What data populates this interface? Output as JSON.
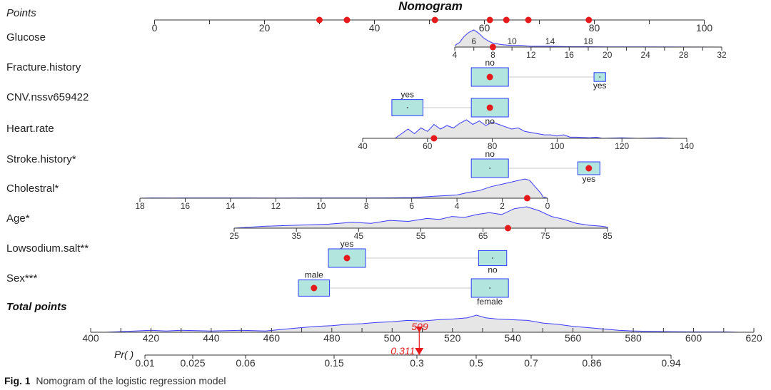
{
  "chart_data": {
    "type": "nomogram",
    "title": "Nomogram",
    "points_label": "Points",
    "points_axis": {
      "range": [
        0,
        100
      ],
      "ticks": [
        0,
        20,
        40,
        60,
        80,
        100
      ],
      "ticklabels": [
        "0",
        "20",
        "40",
        "60",
        "80",
        "100"
      ]
    },
    "points_markers": [
      30,
      35,
      51,
      61,
      64,
      68,
      79
    ],
    "variables": [
      {
        "name": "Glucose",
        "kind": "continuous",
        "ticks": [
          4,
          8,
          12,
          16,
          20,
          24,
          28,
          32
        ],
        "ticklabels": [
          "4",
          "8",
          "12",
          "16",
          "20",
          "24",
          "28",
          "32"
        ],
        "minor_ticks": [
          4,
          6,
          8,
          10,
          12,
          14,
          16,
          18,
          20,
          22,
          24,
          26,
          28,
          30,
          32
        ],
        "minor_labels": [
          {
            "v": 6,
            "t": "6"
          },
          {
            "v": 10,
            "t": "10"
          },
          {
            "v": 14,
            "t": "14"
          },
          {
            "v": 18,
            "t": "18"
          }
        ],
        "observed": 8,
        "density": [
          [
            4,
            2
          ],
          [
            4.5,
            6
          ],
          [
            5,
            14
          ],
          [
            5.5,
            19
          ],
          [
            6,
            22
          ],
          [
            6.5,
            18
          ],
          [
            7,
            12
          ],
          [
            7.5,
            8
          ],
          [
            8,
            5
          ],
          [
            9,
            3
          ],
          [
            10,
            2
          ],
          [
            11,
            2
          ],
          [
            12,
            1
          ],
          [
            14,
            1
          ],
          [
            16,
            0.5
          ],
          [
            18,
            0.5
          ],
          [
            20,
            0.3
          ],
          [
            24,
            0.2
          ],
          [
            28,
            0.1
          ],
          [
            32,
            0
          ]
        ]
      },
      {
        "name": "Fracture.history",
        "kind": "categorical",
        "levels": [
          {
            "label": "no",
            "value": 0,
            "box": 20,
            "label_pos": "above",
            "observed": true
          },
          {
            "label": "yes",
            "value": 1,
            "box": 3,
            "label_pos": "below",
            "observed": false
          }
        ]
      },
      {
        "name": "CNV.nssv659422",
        "kind": "categorical",
        "levels": [
          {
            "label": "yes",
            "value": 1,
            "box": 16,
            "label_pos": "above",
            "observed": false
          },
          {
            "label": "no",
            "value": 0,
            "box": 20,
            "label_pos": "below",
            "observed": true
          }
        ]
      },
      {
        "name": "Heart.rate",
        "kind": "continuous",
        "ticks": [
          40,
          60,
          80,
          100,
          120,
          140
        ],
        "ticklabels": [
          "40",
          "60",
          "80",
          "100",
          "120",
          "140"
        ],
        "observed": 62,
        "density": [
          [
            50,
            0
          ],
          [
            52,
            4
          ],
          [
            54,
            8
          ],
          [
            56,
            4
          ],
          [
            58,
            9
          ],
          [
            60,
            6
          ],
          [
            62,
            12
          ],
          [
            64,
            8
          ],
          [
            66,
            11
          ],
          [
            68,
            9
          ],
          [
            70,
            13
          ],
          [
            72,
            16
          ],
          [
            74,
            12
          ],
          [
            76,
            15
          ],
          [
            78,
            11
          ],
          [
            80,
            14
          ],
          [
            82,
            12
          ],
          [
            84,
            10
          ],
          [
            86,
            8
          ],
          [
            88,
            9
          ],
          [
            90,
            6
          ],
          [
            92,
            5
          ],
          [
            94,
            4
          ],
          [
            96,
            3
          ],
          [
            98,
            3
          ],
          [
            100,
            2
          ],
          [
            102,
            3
          ],
          [
            104,
            1
          ],
          [
            106,
            1
          ],
          [
            110,
            0.5
          ],
          [
            112,
            1
          ],
          [
            114,
            0
          ],
          [
            120,
            0.5
          ],
          [
            125,
            0
          ],
          [
            132,
            0.5
          ],
          [
            136,
            0
          ]
        ]
      },
      {
        "name": "Stroke.history*",
        "kind": "categorical",
        "levels": [
          {
            "label": "no",
            "value": 0,
            "box": 20,
            "label_pos": "above",
            "observed": false
          },
          {
            "label": "yes",
            "value": 1,
            "box": 10,
            "label_pos": "below",
            "observed": true
          }
        ]
      },
      {
        "name": "Cholestral*",
        "kind": "continuous",
        "ticks": [
          18,
          16,
          14,
          12,
          10,
          8,
          6,
          4,
          2,
          0
        ],
        "ticklabels": [
          "18",
          "16",
          "14",
          "12",
          "10",
          "8",
          "6",
          "4",
          "2",
          "0"
        ],
        "observed": 0.9,
        "density": [
          [
            18,
            0
          ],
          [
            17.5,
            0.5
          ],
          [
            16.5,
            0.3
          ],
          [
            15,
            0.4
          ],
          [
            13.5,
            0.4
          ],
          [
            12,
            0.3
          ],
          [
            10.5,
            0.5
          ],
          [
            9,
            0.4
          ],
          [
            8,
            0.5
          ],
          [
            7,
            0.6
          ],
          [
            6,
            1
          ],
          [
            5.5,
            2
          ],
          [
            5,
            3
          ],
          [
            4.5,
            4
          ],
          [
            4,
            5
          ],
          [
            3.5,
            9
          ],
          [
            3,
            12
          ],
          [
            2.5,
            18
          ],
          [
            2,
            22
          ],
          [
            1.5,
            26
          ],
          [
            1,
            30
          ],
          [
            0.8,
            28
          ],
          [
            0.5,
            16
          ],
          [
            0.3,
            8
          ],
          [
            0.2,
            2
          ],
          [
            0,
            0
          ]
        ]
      },
      {
        "name": "Age*",
        "kind": "continuous",
        "ticks": [
          25,
          35,
          45,
          55,
          65,
          75,
          85
        ],
        "ticklabels": [
          "25",
          "35",
          "45",
          "55",
          "65",
          "75",
          "85"
        ],
        "observed": 69,
        "density": [
          [
            25,
            0
          ],
          [
            30,
            2
          ],
          [
            35,
            3
          ],
          [
            40,
            4
          ],
          [
            44,
            6
          ],
          [
            47,
            5
          ],
          [
            50,
            8
          ],
          [
            53,
            7
          ],
          [
            56,
            10
          ],
          [
            58,
            9
          ],
          [
            60,
            12
          ],
          [
            62,
            11
          ],
          [
            64,
            14
          ],
          [
            66,
            16
          ],
          [
            68,
            14
          ],
          [
            70,
            20
          ],
          [
            72,
            22
          ],
          [
            74,
            18
          ],
          [
            76,
            12
          ],
          [
            78,
            9
          ],
          [
            80,
            5
          ],
          [
            82,
            3
          ],
          [
            84,
            2
          ],
          [
            86,
            1
          ],
          [
            88,
            1
          ],
          [
            90,
            0.5
          ],
          [
            92,
            0
          ]
        ]
      },
      {
        "name": "Lowsodium.salt**",
        "kind": "categorical",
        "levels": [
          {
            "label": "yes",
            "value": 1,
            "box": 20,
            "label_pos": "above",
            "observed": true
          },
          {
            "label": "no",
            "value": 0,
            "box": 14,
            "label_pos": "below",
            "observed": false
          }
        ]
      },
      {
        "name": "Sex***",
        "kind": "categorical",
        "levels": [
          {
            "label": "male",
            "value": 1,
            "box": 16,
            "label_pos": "above",
            "observed": true
          },
          {
            "label": "female",
            "value": 0,
            "box": 20,
            "label_pos": "below",
            "observed": false
          }
        ]
      }
    ],
    "total_points": {
      "label": "Total points",
      "range": [
        400,
        620
      ],
      "ticks": [
        400,
        420,
        440,
        460,
        480,
        500,
        520,
        540,
        560,
        580,
        600,
        620
      ],
      "ticklabels": [
        "400",
        "420",
        "440",
        "460",
        "480",
        "500",
        "520",
        "540",
        "560",
        "580",
        "600",
        "620"
      ],
      "observed": 509,
      "observed_label": "509",
      "density": [
        [
          405,
          0
        ],
        [
          410,
          1
        ],
        [
          420,
          3
        ],
        [
          425,
          2
        ],
        [
          430,
          3
        ],
        [
          440,
          2
        ],
        [
          450,
          3
        ],
        [
          458,
          2
        ],
        [
          465,
          5
        ],
        [
          470,
          7
        ],
        [
          475,
          9
        ],
        [
          480,
          10
        ],
        [
          485,
          12
        ],
        [
          490,
          13
        ],
        [
          495,
          15
        ],
        [
          500,
          16
        ],
        [
          505,
          18
        ],
        [
          510,
          17
        ],
        [
          515,
          19
        ],
        [
          520,
          20
        ],
        [
          525,
          22
        ],
        [
          528,
          26
        ],
        [
          531,
          22
        ],
        [
          535,
          20
        ],
        [
          540,
          19
        ],
        [
          545,
          18
        ],
        [
          550,
          14
        ],
        [
          555,
          12
        ],
        [
          560,
          9
        ],
        [
          565,
          7
        ],
        [
          570,
          5
        ],
        [
          575,
          3
        ],
        [
          580,
          2
        ],
        [
          590,
          1
        ],
        [
          600,
          0.5
        ],
        [
          610,
          0.5
        ],
        [
          615,
          0
        ]
      ]
    },
    "probability": {
      "label": "Pr( )",
      "ticks": [
        0.01,
        0.025,
        0.06,
        0.15,
        0.3,
        0.5,
        0.7,
        0.86,
        0.94
      ],
      "ticklabels": [
        "0.01",
        "0.025",
        "0.06",
        "0.15",
        "0.3",
        "0.5",
        "0.7",
        "0.86",
        "0.94"
      ],
      "observed": 0.311,
      "observed_label": "0.311"
    },
    "colors": {
      "marker": "#e41a1c",
      "box_fill": "#b2e5dd",
      "box_stroke": "#2b3cff",
      "density_line": "#3a3aff",
      "density_fill": "#e6e6e6"
    }
  },
  "caption": {
    "label": "Fig. 1",
    "text": "Nomogram of the logistic regression model"
  }
}
